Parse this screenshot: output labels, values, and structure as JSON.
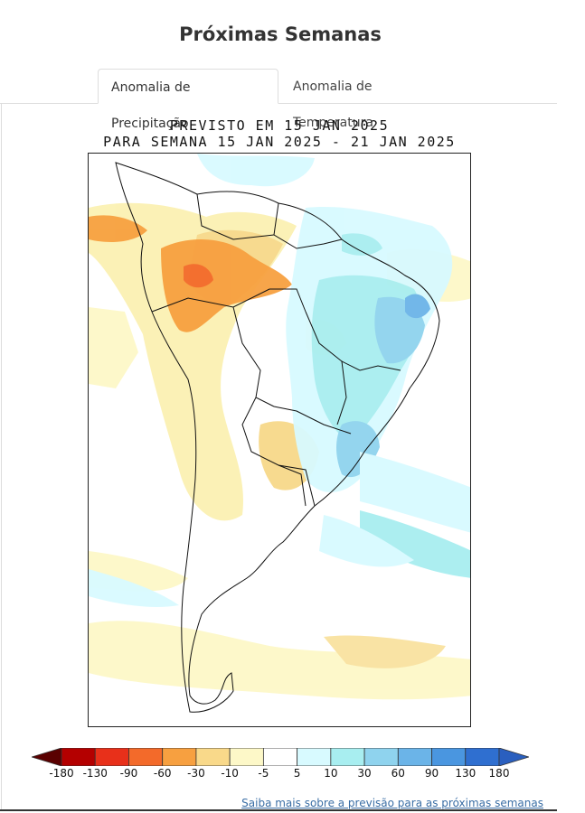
{
  "page": {
    "title": "Próximas Semanas"
  },
  "tabs": [
    {
      "label": "Anomalia de Precipitação",
      "active": true
    },
    {
      "label": "Anomalia de Temperatura",
      "active": false
    }
  ],
  "map": {
    "title_line1": "PREVISTO EM 15 JAN 2025",
    "title_line2": "PARA SEMANA 15 JAN 2025 - 21 JAN 2025"
  },
  "colorbar": {
    "labels": [
      "-180",
      "-130",
      "-90",
      "-60",
      "-30",
      "-10",
      "-5",
      "5",
      "10",
      "30",
      "60",
      "90",
      "130",
      "180"
    ],
    "colors": [
      "#5a0000",
      "#b40000",
      "#e8301a",
      "#f36a2a",
      "#f7a040",
      "#f9d98a",
      "#fdf8c8",
      "#ffffff",
      "#d8faff",
      "#a8eef0",
      "#8fd3ee",
      "#6bb4e8",
      "#4a96e0",
      "#2f6fd0",
      "#2a5fbf"
    ]
  },
  "link": {
    "text": "Saiba mais sobre a previsão para as próximas semanas"
  }
}
